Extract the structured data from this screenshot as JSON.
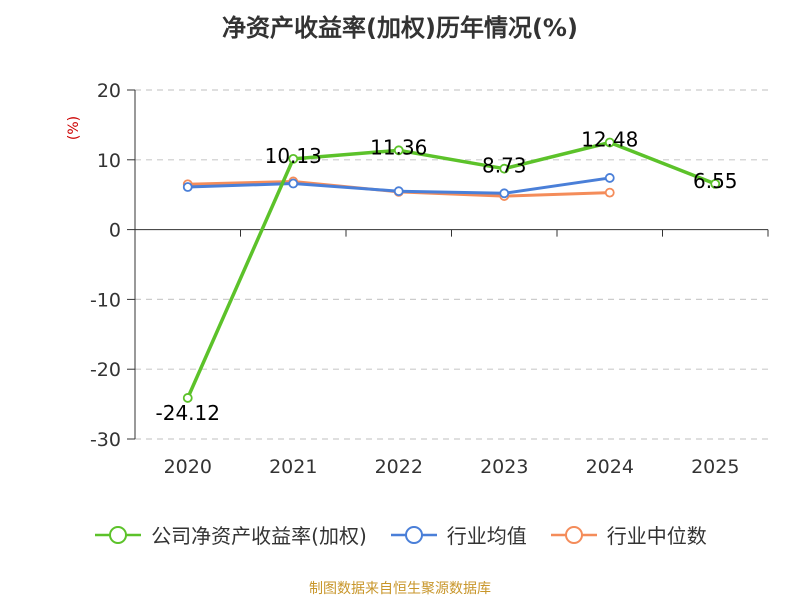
{
  "title": "净资产收益率(加权)历年情况(%)",
  "source_note": "制图数据来自恒生聚源数据库",
  "chart_data": {
    "type": "line",
    "title": "净资产收益率(加权)历年情况(%)",
    "ylabel": "(%)",
    "xlabel": "",
    "categories": [
      "2020",
      "2021",
      "2022",
      "2023",
      "2024",
      "2025"
    ],
    "ylim": [
      -30,
      20
    ],
    "yticks": [
      20,
      10,
      0,
      -10,
      -20,
      -30
    ],
    "grid": true,
    "legend_position": "bottom",
    "series": [
      {
        "name": "公司净资产收益率(加权)",
        "color": "#5cc22a",
        "values": [
          -24.12,
          10.13,
          11.36,
          8.73,
          12.48,
          6.55
        ],
        "labels": [
          "-24.12",
          "10.13",
          "11.36",
          "8.73",
          "12.48",
          "6.55"
        ]
      },
      {
        "name": "行业均值",
        "color": "#4a7fd8",
        "values": [
          6.1,
          6.6,
          5.5,
          5.2,
          7.4,
          null
        ]
      },
      {
        "name": "行业中位数",
        "color": "#f48c5a",
        "values": [
          6.5,
          6.9,
          5.4,
          4.8,
          5.3,
          null
        ]
      }
    ]
  }
}
